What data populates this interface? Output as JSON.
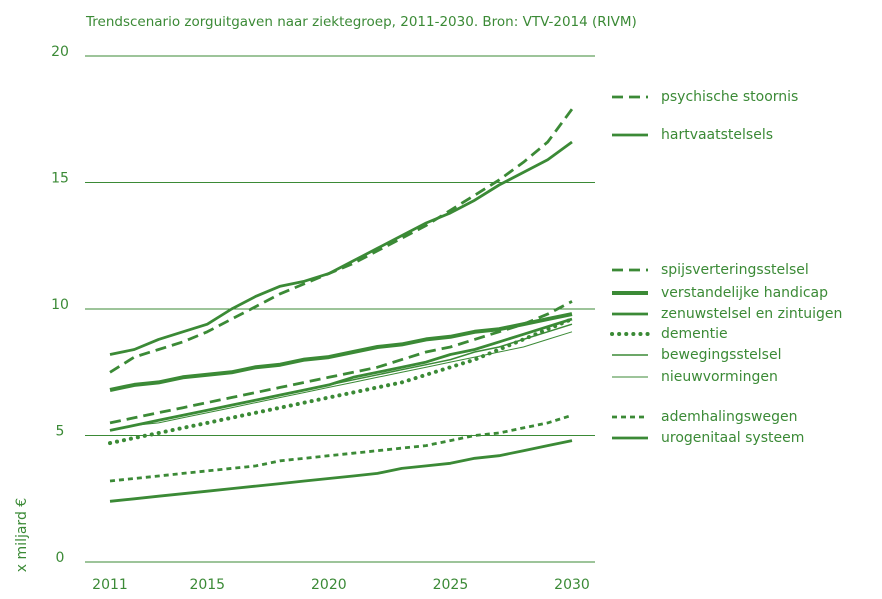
{
  "chart_data": {
    "type": "line",
    "title": "Trendscenario zorguitgaven naar ziektegroep, 2011-2030. Bron: VTV-2014 (RIVM)",
    "y_label": "x miljard €",
    "x": [
      2011,
      2012,
      2013,
      2014,
      2015,
      2016,
      2017,
      2018,
      2019,
      2020,
      2021,
      2022,
      2023,
      2024,
      2025,
      2026,
      2027,
      2028,
      2029,
      2030
    ],
    "xlim": [
      2011,
      2030
    ],
    "xticks": [
      2011,
      2015,
      2020,
      2025,
      2030
    ],
    "ylim": [
      0,
      20
    ],
    "yticks": [
      0,
      5,
      10,
      15,
      20
    ],
    "grid": true,
    "color": "#3b8a36",
    "series": [
      {
        "name": "psychische stoornis",
        "linestyle": "dashed",
        "weight": "thick",
        "values": [
          7.5,
          8.1,
          8.4,
          8.7,
          9.1,
          9.6,
          10.1,
          10.6,
          11.0,
          11.4,
          11.8,
          12.3,
          12.8,
          13.3,
          13.9,
          14.5,
          15.1,
          15.8,
          16.6,
          17.9
        ]
      },
      {
        "name": "hartvaatstelsels",
        "linestyle": "solid",
        "weight": "thick",
        "values": [
          8.2,
          8.4,
          8.8,
          9.1,
          9.4,
          10.0,
          10.5,
          10.9,
          11.1,
          11.4,
          11.9,
          12.4,
          12.9,
          13.4,
          13.8,
          14.3,
          14.9,
          15.4,
          15.9,
          16.6
        ]
      },
      {
        "name": "spijsverteringsstelsel",
        "linestyle": "dashed",
        "weight": "thick",
        "values": [
          5.5,
          5.7,
          5.9,
          6.1,
          6.3,
          6.5,
          6.7,
          6.9,
          7.1,
          7.3,
          7.5,
          7.7,
          8.0,
          8.3,
          8.5,
          8.8,
          9.1,
          9.4,
          9.8,
          10.3
        ]
      },
      {
        "name": "verstandelijke handicap",
        "linestyle": "solid",
        "weight": "heavy",
        "values": [
          6.8,
          7.0,
          7.1,
          7.3,
          7.4,
          7.5,
          7.7,
          7.8,
          8.0,
          8.1,
          8.3,
          8.5,
          8.6,
          8.8,
          8.9,
          9.1,
          9.2,
          9.4,
          9.6,
          9.8
        ]
      },
      {
        "name": "zenuwstelsel en zintuigen",
        "linestyle": "solid",
        "weight": "thick",
        "values": [
          5.2,
          5.4,
          5.6,
          5.8,
          6.0,
          6.2,
          6.4,
          6.6,
          6.8,
          7.0,
          7.3,
          7.5,
          7.7,
          7.9,
          8.2,
          8.4,
          8.7,
          9.0,
          9.3,
          9.6
        ]
      },
      {
        "name": "dementie",
        "linestyle": "dotted",
        "weight": "heavy",
        "values": [
          4.7,
          4.9,
          5.1,
          5.3,
          5.5,
          5.7,
          5.9,
          6.1,
          6.3,
          6.5,
          6.7,
          6.9,
          7.1,
          7.4,
          7.7,
          8.0,
          8.4,
          8.8,
          9.2,
          9.6
        ]
      },
      {
        "name": "bewegingsstelsel",
        "linestyle": "solid",
        "weight": "thin",
        "values": [
          5.2,
          5.4,
          5.6,
          5.8,
          6.0,
          6.2,
          6.4,
          6.6,
          6.8,
          7.0,
          7.2,
          7.4,
          7.6,
          7.8,
          8.0,
          8.3,
          8.5,
          8.8,
          9.1,
          9.4
        ]
      },
      {
        "name": "nieuwvormingen",
        "linestyle": "solid",
        "weight": "hairline",
        "values": [
          5.2,
          5.4,
          5.5,
          5.7,
          5.9,
          6.1,
          6.3,
          6.5,
          6.7,
          6.9,
          7.1,
          7.3,
          7.5,
          7.7,
          7.9,
          8.1,
          8.3,
          8.5,
          8.8,
          9.1
        ]
      },
      {
        "name": "ademhalingswegen",
        "linestyle": "short-dashed",
        "weight": "thick",
        "values": [
          3.2,
          3.3,
          3.4,
          3.5,
          3.6,
          3.7,
          3.8,
          4.0,
          4.1,
          4.2,
          4.3,
          4.4,
          4.5,
          4.6,
          4.8,
          5.0,
          5.1,
          5.3,
          5.5,
          5.8
        ]
      },
      {
        "name": "urogenitaal systeem",
        "linestyle": "solid",
        "weight": "thick",
        "values": [
          2.4,
          2.5,
          2.6,
          2.7,
          2.8,
          2.9,
          3.0,
          3.1,
          3.2,
          3.3,
          3.4,
          3.5,
          3.7,
          3.8,
          3.9,
          4.1,
          4.2,
          4.4,
          4.6,
          4.8
        ]
      }
    ]
  }
}
